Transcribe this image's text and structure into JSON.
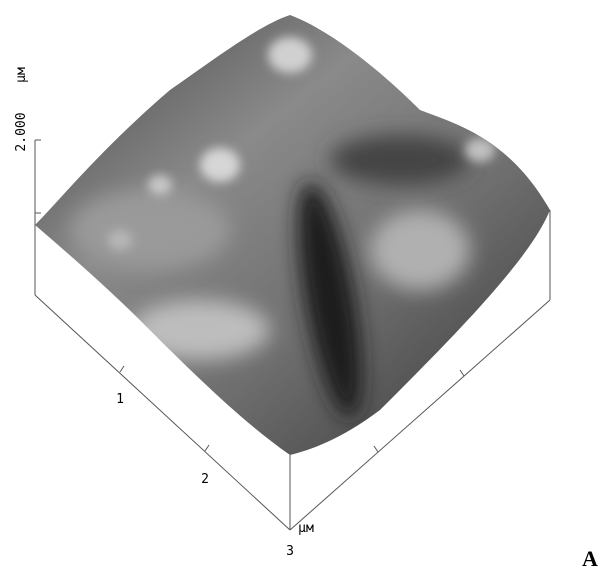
{
  "z_axis": {
    "unit": "µм",
    "tick_label": "2.000"
  },
  "x_axis": {
    "tick_labels": [
      "1",
      "2",
      "3"
    ],
    "unit": "µм"
  },
  "panel_label": "A"
}
